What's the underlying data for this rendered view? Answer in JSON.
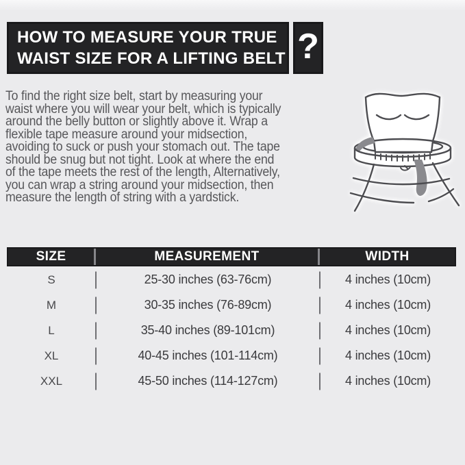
{
  "header": {
    "title_line1": "HOW TO MEASURE YOUR TRUE",
    "title_line2": "WAIST SIZE FOR A LIFTING BELT",
    "question_mark": "?"
  },
  "intro": {
    "lines": [
      "To find the right size belt, start by measuring your",
      "waist where you will wear your belt, which is typically",
      "around the belly button or slightly above it. Wrap a",
      "flexible tape measure around your midsection,",
      "avoiding to suck or push your stomach out. The tape",
      "should be snug but not tight. Look at where the end",
      "of the tape meets the rest of the length, Alternatively,",
      "you can wrap a string around your midsection, then",
      "measure the length of string with a yardstick."
    ]
  },
  "illustration": {
    "alt": "torso with measuring tape wrapped around the waist"
  },
  "table": {
    "headers": [
      "SIZE",
      "MEASUREMENT",
      "WIDTH"
    ],
    "rows": [
      {
        "size": "S",
        "measurement": "25-30 inches (63-76cm)",
        "width": "4 inches (10cm)"
      },
      {
        "size": "M",
        "measurement": "30-35 inches (76-89cm)",
        "width": "4 inches (10cm)"
      },
      {
        "size": "L",
        "measurement": "35-40 inches (89-101cm)",
        "width": "4 inches (10cm)"
      },
      {
        "size": "XL",
        "measurement": "40-45 inches (101-114cm)",
        "width": "4 inches (10cm)"
      },
      {
        "size": "XXL",
        "measurement": "45-50 inches (114-127cm)",
        "width": "4 inches (10cm)"
      }
    ]
  },
  "colors": {
    "background": "#ebebed",
    "panel_black": "#232325",
    "intro_text": "#57575a",
    "table_text": "#3a3a3d",
    "line_art": "#4c4c50",
    "tape_gray": "#8a8a8e",
    "white": "#ffffff"
  }
}
